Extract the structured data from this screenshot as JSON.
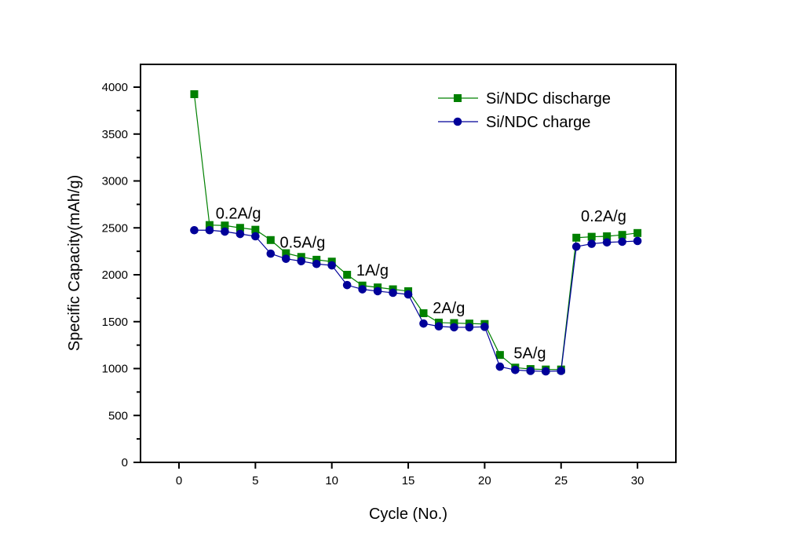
{
  "chart_data": {
    "type": "line",
    "title": "",
    "xlabel": "Cycle (No.)",
    "ylabel": "Specific Capacity(mAh/g)",
    "xlim": [
      -2.5,
      32.5
    ],
    "ylim": [
      0,
      4100
    ],
    "x_ticks": [
      0,
      5,
      10,
      15,
      20,
      25,
      30
    ],
    "x_tick_labels": [
      "0",
      "5",
      "10",
      "15",
      "20",
      "25",
      "30"
    ],
    "y_ticks": [
      0,
      500,
      1000,
      1500,
      2000,
      2500,
      3000,
      3500,
      4000
    ],
    "y_tick_labels": [
      "0",
      "500",
      "1000",
      "1500",
      "2000",
      "2500",
      "3000",
      "3500",
      "4000"
    ],
    "y_minor_step": 250,
    "grid": false,
    "legend_position": "top-right",
    "x": [
      1,
      2,
      3,
      4,
      5,
      6,
      7,
      8,
      9,
      10,
      11,
      12,
      13,
      14,
      15,
      16,
      17,
      18,
      19,
      20,
      21,
      22,
      23,
      24,
      25,
      26,
      27,
      28,
      29,
      30
    ],
    "series": [
      {
        "name": "Si/NDC discharge",
        "color": "#008000",
        "marker": "square",
        "values": [
          3925,
          2530,
          2525,
          2500,
          2480,
          2370,
          2230,
          2190,
          2160,
          2140,
          2000,
          1885,
          1865,
          1845,
          1825,
          1590,
          1490,
          1485,
          1480,
          1475,
          1145,
          1010,
          995,
          990,
          990,
          2395,
          2405,
          2410,
          2425,
          2445
        ]
      },
      {
        "name": "Si/NDC charge",
        "color": "#000099",
        "marker": "circle",
        "values": [
          2475,
          2475,
          2460,
          2435,
          2410,
          2225,
          2170,
          2145,
          2115,
          2100,
          1890,
          1845,
          1825,
          1808,
          1790,
          1480,
          1450,
          1440,
          1440,
          1445,
          1020,
          985,
          975,
          970,
          975,
          2300,
          2330,
          2345,
          2352,
          2360
        ]
      }
    ],
    "annotations": [
      {
        "text": "0.2A/g",
        "x": 2.4,
        "y": 2600
      },
      {
        "text": "0.5A/g",
        "x": 6.6,
        "y": 2290
      },
      {
        "text": "1A/g",
        "x": 11.6,
        "y": 1990
      },
      {
        "text": "2A/g",
        "x": 16.6,
        "y": 1590
      },
      {
        "text": "5A/g",
        "x": 21.9,
        "y": 1110
      },
      {
        "text": "0.2A/g",
        "x": 26.3,
        "y": 2570
      }
    ]
  }
}
